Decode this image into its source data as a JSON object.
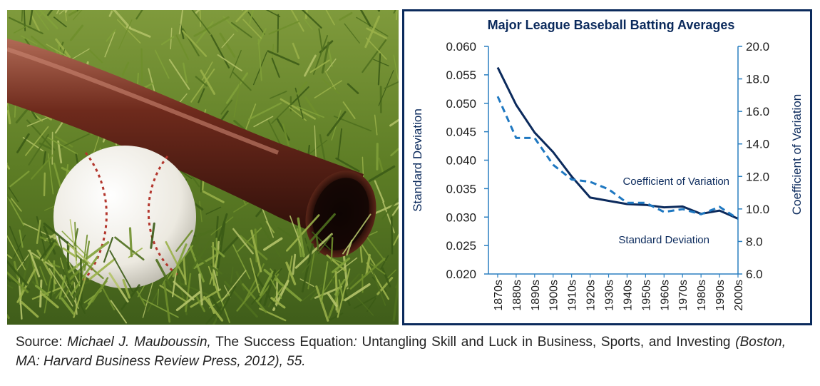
{
  "caption": {
    "p1": "Source: ",
    "p2": "Michael J. Mauboussin,",
    "p3": " The Success Equation",
    "p4": ":",
    "p5": " Untangling Skill and Luck in Business, Sports, and Investing ",
    "p6": "(Boston, MA: Harvard Business Review Press, 2012), 55."
  },
  "chart_data": {
    "type": "line",
    "title": "Major League Baseball Batting Averages",
    "categories": [
      "1870s",
      "1880s",
      "1890s",
      "1900s",
      "1910s",
      "1920s",
      "1930s",
      "1940s",
      "1950s",
      "1960s",
      "1970s",
      "1980s",
      "1990s",
      "2000s"
    ],
    "series": [
      {
        "name": "Coefficient of Variation",
        "axis": "right",
        "color": "#0b2a5c",
        "style": "solid",
        "values": [
          18.7,
          16.4,
          14.7,
          13.5,
          12.0,
          10.7,
          10.5,
          10.3,
          10.25,
          10.1,
          10.15,
          9.7,
          9.9,
          9.4
        ]
      },
      {
        "name": "Standard Deviation",
        "axis": "left",
        "color": "#1f78c1",
        "style": "dashed",
        "values": [
          0.0512,
          0.0439,
          0.0439,
          0.0392,
          0.0366,
          0.0362,
          0.0349,
          0.0325,
          0.0325,
          0.0309,
          0.0314,
          0.0305,
          0.0318,
          0.0297
        ]
      }
    ],
    "ylabel": "Standard Deviation",
    "ylabel_right": "Coefficient of Variation",
    "ylim": [
      0.02,
      0.06
    ],
    "ylim_right": [
      6.0,
      20.0
    ],
    "yticks": [
      "0.020",
      "0.025",
      "0.030",
      "0.035",
      "0.040",
      "0.045",
      "0.050",
      "0.055",
      "0.060"
    ],
    "yticks_right": [
      "6.0",
      "8.0",
      "10.0",
      "12.0",
      "14.0",
      "16.0",
      "18.0",
      "20.0"
    ],
    "grid": false
  },
  "colors": {
    "frame": "#0b2a5c",
    "axis": "#2a7fc0",
    "tick_label": "#1a1a1a",
    "title": "#0b2a5c"
  }
}
